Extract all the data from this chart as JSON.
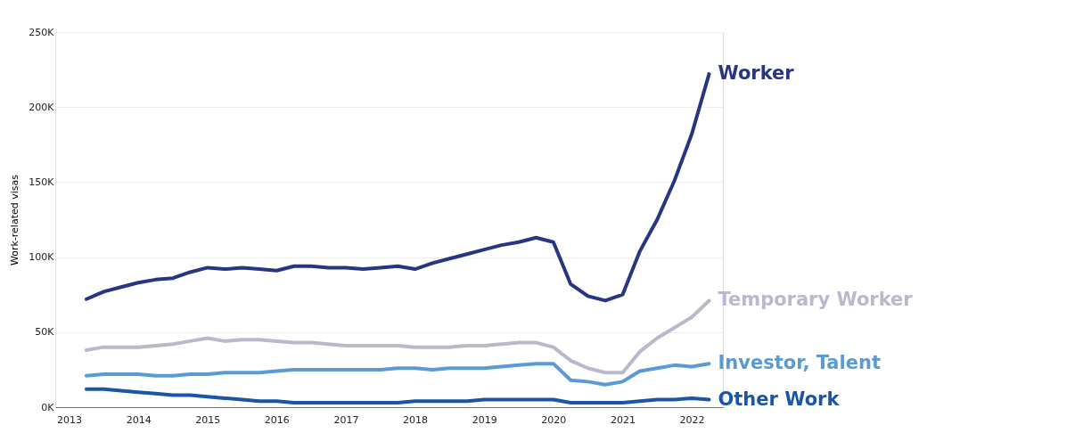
{
  "chart_data": {
    "type": "line",
    "ylabel": "Work-related visas",
    "x": [
      2013.25,
      2013.5,
      2013.75,
      2014,
      2014.25,
      2014.5,
      2014.75,
      2015,
      2015.25,
      2015.5,
      2015.75,
      2016,
      2016.25,
      2016.5,
      2016.75,
      2017,
      2017.25,
      2017.5,
      2017.75,
      2018,
      2018.25,
      2018.5,
      2018.75,
      2019,
      2019.25,
      2019.5,
      2019.75,
      2020,
      2020.25,
      2020.5,
      2020.75,
      2021,
      2021.25,
      2021.5,
      2021.75,
      2022,
      2022.25
    ],
    "series": [
      {
        "name": "Worker",
        "color": "#283583",
        "values": [
          72,
          77,
          80,
          83,
          85,
          86,
          90,
          93,
          92,
          93,
          92,
          91,
          94,
          94,
          93,
          93,
          92,
          93,
          94,
          92,
          96,
          99,
          102,
          105,
          108,
          110,
          113,
          110,
          82,
          74,
          71,
          75,
          104,
          125,
          151,
          182,
          222
        ]
      },
      {
        "name": "Temporary Worker",
        "color": "#b9b8cc",
        "values": [
          38,
          40,
          40,
          40,
          41,
          42,
          44,
          46,
          44,
          45,
          45,
          44,
          43,
          43,
          42,
          41,
          41,
          41,
          41,
          40,
          40,
          40,
          41,
          41,
          42,
          43,
          43,
          40,
          31,
          26,
          23,
          23,
          37,
          46,
          53,
          60,
          71
        ]
      },
      {
        "name": "Investor, Talent",
        "color": "#5b9bd5",
        "values": [
          21,
          22,
          22,
          22,
          21,
          21,
          22,
          22,
          23,
          23,
          23,
          24,
          25,
          25,
          25,
          25,
          25,
          25,
          26,
          26,
          25,
          26,
          26,
          26,
          27,
          28,
          29,
          29,
          18,
          17,
          15,
          17,
          24,
          26,
          28,
          27,
          29
        ]
      },
      {
        "name": "Other Work",
        "color": "#1b55a8",
        "values": [
          12,
          12,
          11,
          10,
          9,
          8,
          8,
          7,
          6,
          5,
          4,
          4,
          3,
          3,
          3,
          3,
          3,
          3,
          3,
          4,
          4,
          4,
          4,
          5,
          5,
          5,
          5,
          5,
          3,
          3,
          3,
          3,
          4,
          5,
          5,
          6,
          5
        ]
      }
    ],
    "xlim": [
      2012.8,
      2022.45
    ],
    "xticks": [
      2013,
      2014,
      2015,
      2016,
      2017,
      2018,
      2019,
      2020,
      2021,
      2022
    ],
    "ylim": [
      0,
      250
    ],
    "yticks": [
      {
        "value": 0,
        "label": "0K"
      },
      {
        "value": 50,
        "label": "50K"
      },
      {
        "value": 100,
        "label": "100K"
      },
      {
        "value": 150,
        "label": "150K"
      },
      {
        "value": 200,
        "label": "200K"
      },
      {
        "value": 250,
        "label": "250K"
      }
    ],
    "grid": "y",
    "legend": false,
    "marker": "none",
    "line_style": "solid"
  }
}
